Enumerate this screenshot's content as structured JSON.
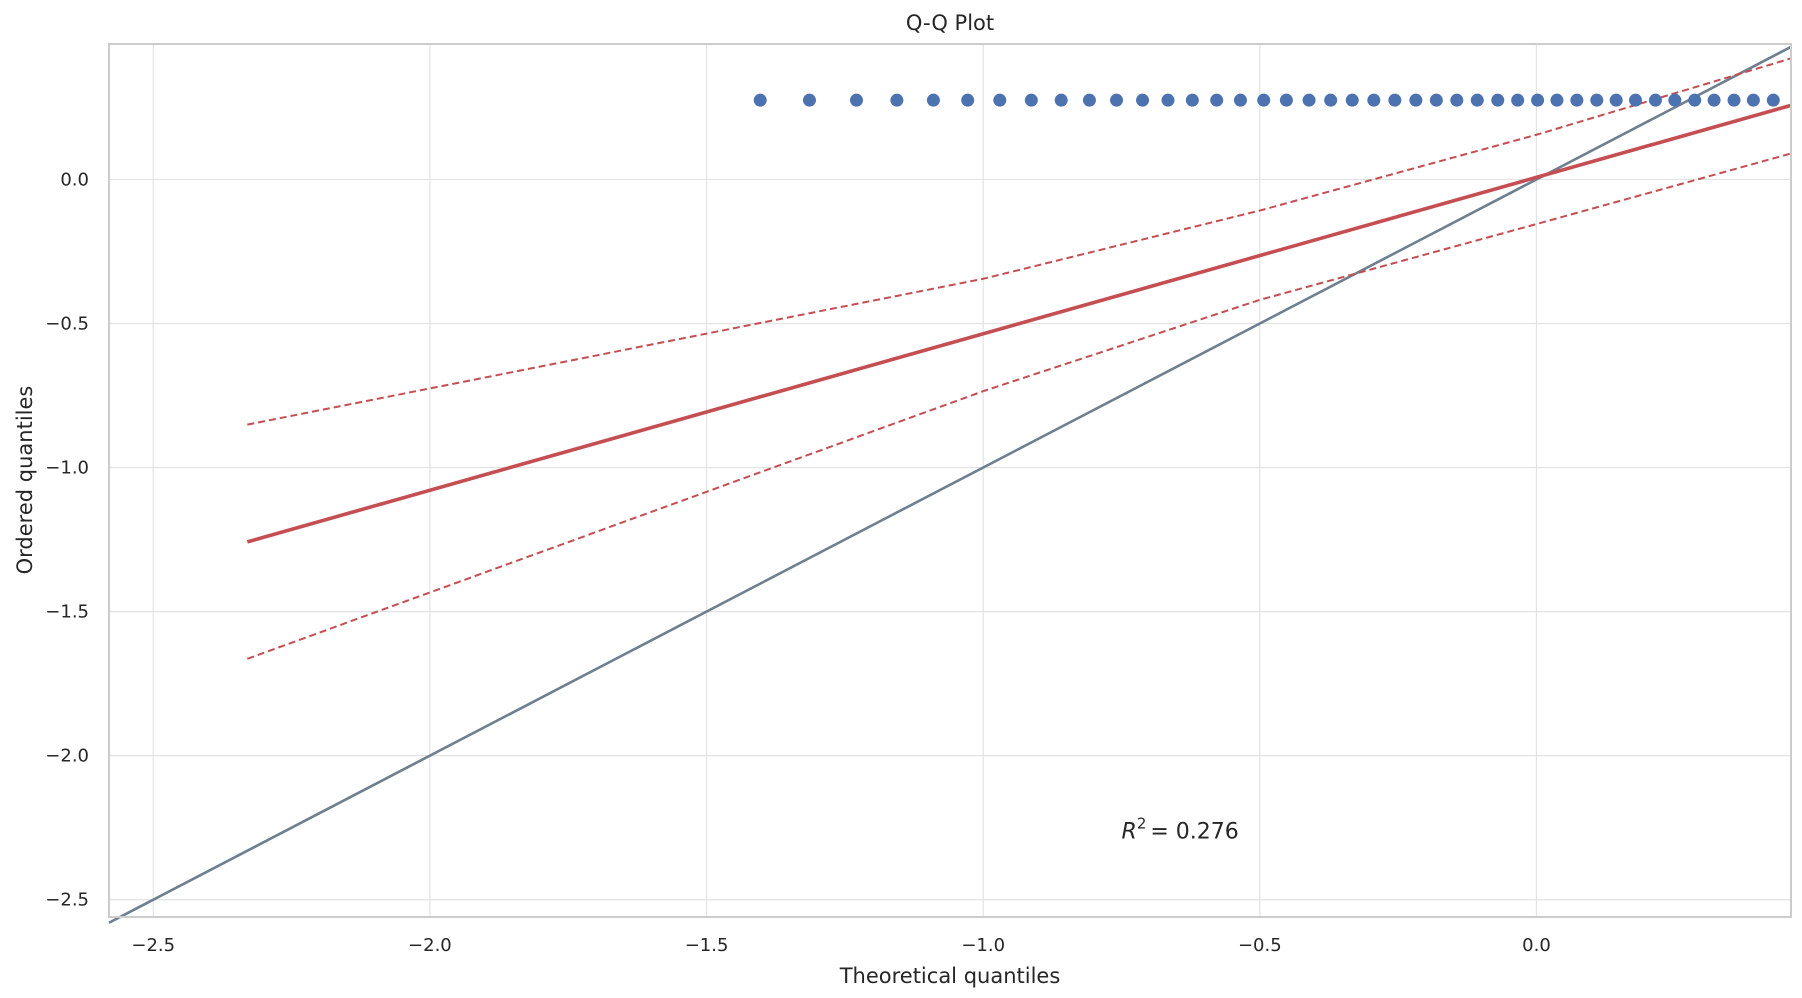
{
  "chart_data": {
    "type": "scatter",
    "title": "Q-Q Plot",
    "xlabel": "Theoretical quantiles",
    "ylabel": "Ordered quantiles",
    "xlim": [
      -2.58,
      0.46
    ],
    "ylim": [
      -2.56,
      0.47
    ],
    "grid": true,
    "xticks": [
      {
        "value": -2.5,
        "label": "−2.5"
      },
      {
        "value": -2.0,
        "label": "−2.0"
      },
      {
        "value": -1.5,
        "label": "−1.5"
      },
      {
        "value": -1.0,
        "label": "−1.0"
      },
      {
        "value": -0.5,
        "label": "−0.5"
      },
      {
        "value": 0.0,
        "label": "0.0"
      }
    ],
    "yticks": [
      {
        "value": 0.0,
        "label": "0.0"
      },
      {
        "value": -0.5,
        "label": "−0.5"
      },
      {
        "value": -1.0,
        "label": "−1.0"
      },
      {
        "value": -1.5,
        "label": "−1.5"
      },
      {
        "value": -2.0,
        "label": "−2.0"
      },
      {
        "value": -2.5,
        "label": "−2.5"
      }
    ],
    "points": {
      "color": "#4c72b0",
      "y": 0.275,
      "x": [
        -1.403,
        -1.314,
        -1.229,
        -1.156,
        -1.09,
        -1.028,
        -0.97,
        -0.913,
        -0.859,
        -0.808,
        -0.759,
        -0.712,
        -0.666,
        -0.622,
        -0.578,
        -0.535,
        -0.493,
        -0.452,
        -0.411,
        -0.372,
        -0.333,
        -0.294,
        -0.256,
        -0.218,
        -0.181,
        -0.144,
        -0.107,
        -0.07,
        -0.034,
        0.002,
        0.037,
        0.073,
        0.109,
        0.144,
        0.179,
        0.215,
        0.25,
        0.286,
        0.321,
        0.357,
        0.392,
        0.428
      ]
    },
    "fit_line": {
      "color": "#c44e52",
      "x": [
        -2.33,
        0.46
      ],
      "y": [
        -1.258,
        0.257
      ]
    },
    "confidence_bands": {
      "color": "#c44e52",
      "upper": {
        "x": [
          -2.33,
          -1.0,
          -0.5,
          0.0,
          0.46
        ],
        "y": [
          -0.851,
          -0.345,
          -0.108,
          0.155,
          0.42
        ]
      },
      "lower": {
        "x": [
          -2.33,
          -1.0,
          -0.5,
          0.0,
          0.46
        ],
        "y": [
          -1.664,
          -0.735,
          -0.418,
          -0.155,
          0.09
        ]
      }
    },
    "reference_line": {
      "color": "#6e7f8f",
      "x": [
        -2.58,
        0.46
      ],
      "y": [
        -2.58,
        0.46
      ]
    },
    "annotation": {
      "text": "= 0.276",
      "symbol": "R",
      "superscript": "2",
      "x": -0.75,
      "y": -2.26
    }
  }
}
